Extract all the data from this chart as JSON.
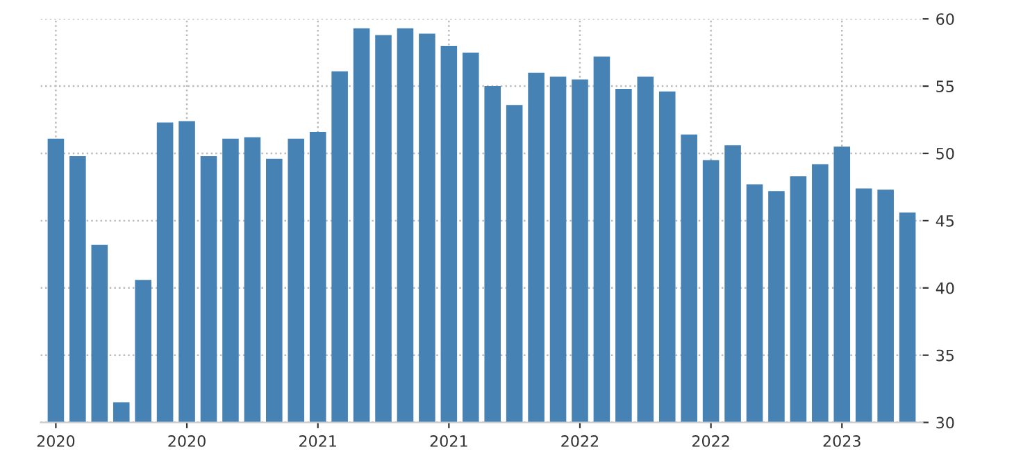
{
  "chart_data": {
    "type": "bar",
    "categories": [
      "2020",
      null,
      null,
      null,
      null,
      null,
      "2020",
      null,
      null,
      null,
      null,
      null,
      "2021",
      null,
      null,
      null,
      null,
      null,
      "2021",
      null,
      null,
      null,
      null,
      null,
      "2022",
      null,
      null,
      null,
      null,
      null,
      "2022",
      null,
      null,
      null,
      null,
      null,
      "2023",
      null,
      null,
      null
    ],
    "values": [
      51.1,
      49.8,
      43.2,
      31.5,
      40.6,
      52.3,
      52.4,
      49.8,
      51.1,
      51.2,
      49.6,
      51.1,
      51.6,
      56.1,
      59.3,
      58.8,
      59.3,
      58.9,
      58.0,
      57.5,
      55.0,
      53.6,
      56.0,
      55.7,
      55.5,
      57.2,
      54.8,
      55.7,
      54.6,
      51.4,
      49.5,
      50.6,
      47.7,
      47.2,
      48.3,
      49.2,
      50.5,
      47.4,
      47.3,
      45.6
    ],
    "color": "#4682b4",
    "ylim": [
      30,
      60
    ],
    "yticks": [
      30,
      35,
      40,
      45,
      50,
      55,
      60
    ],
    "grid": true
  }
}
